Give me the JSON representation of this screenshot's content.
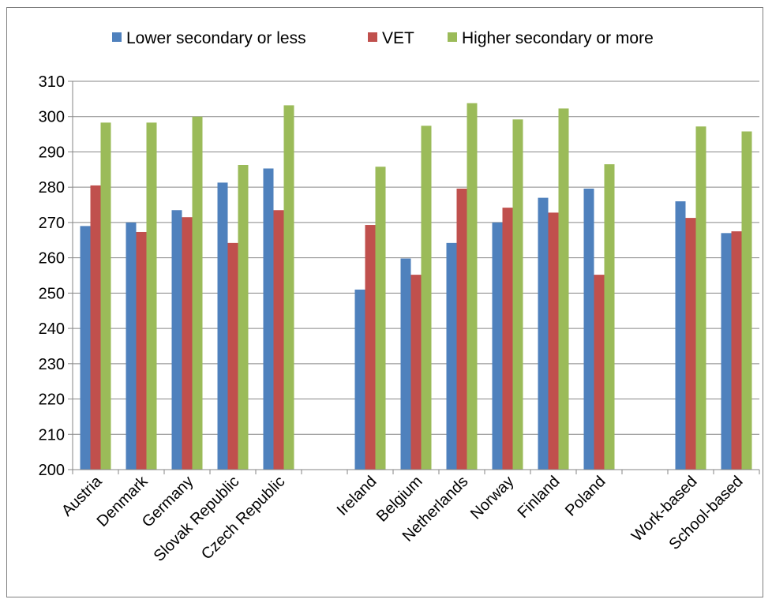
{
  "chart_data": {
    "type": "bar",
    "categories": [
      "Austria",
      "Denmark",
      "Germany",
      "Slovak Republic",
      "Czech Republic",
      "",
      "Ireland",
      "Belgium",
      "Netherlands",
      "Norway",
      "Finland",
      "Poland",
      "",
      "Work-based",
      "School-based"
    ],
    "series": [
      {
        "name": "Lower secondary or less",
        "color": "#4f81bd",
        "values": [
          269,
          270,
          273.5,
          281.3,
          285.3,
          null,
          251,
          259.8,
          264.2,
          270,
          277,
          279.6,
          null,
          276,
          267
        ]
      },
      {
        "name": "VET",
        "color": "#c0504d",
        "values": [
          280.5,
          267.3,
          271.5,
          264.2,
          273.5,
          null,
          269.3,
          255.2,
          279.6,
          274.2,
          272.8,
          255.2,
          null,
          271.3,
          267.5
        ]
      },
      {
        "name": "Higher secondary or more",
        "color": "#9bbb59",
        "values": [
          298.3,
          298.3,
          300,
          286.3,
          303.2,
          null,
          285.8,
          297.4,
          303.8,
          299.2,
          302.3,
          286.5,
          null,
          297.2,
          295.8
        ]
      }
    ],
    "ylim": [
      200,
      310
    ],
    "yticks": [
      "200",
      "210",
      "220",
      "230",
      "240",
      "250",
      "260",
      "270",
      "280",
      "290",
      "300",
      "310"
    ],
    "grid": true,
    "legend_position": "top"
  }
}
